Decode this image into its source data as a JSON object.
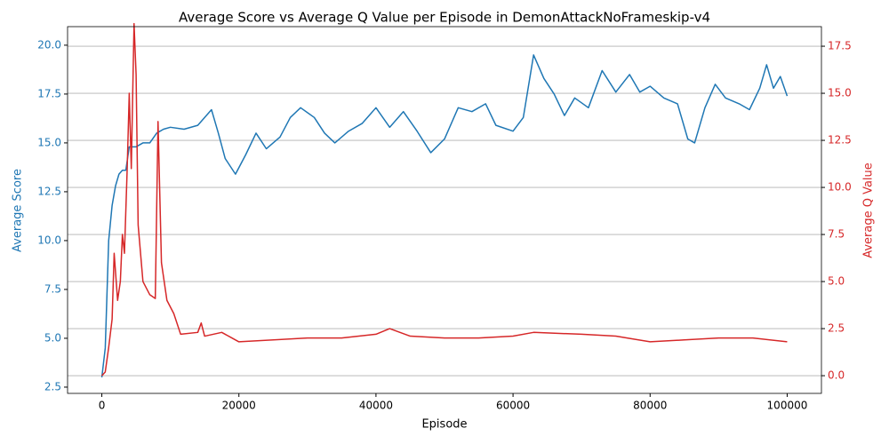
{
  "chart_data": {
    "type": "line",
    "title": "Average Score vs Average Q Value per Episode in DemonAttackNoFrameskip-v4",
    "x_label": "Episode",
    "y_label": "Average Score",
    "y2_label": "Average Q Value",
    "xlim": [
      -5000,
      105000
    ],
    "xticks": [
      0,
      20000,
      40000,
      60000,
      80000,
      100000
    ],
    "ylim": [
      2.18,
      20.95
    ],
    "yticks": [
      2.5,
      {
        "value": 5.0,
        "label": "5.0"
      },
      7.5,
      {
        "value": 10.0,
        "label": "10.0"
      },
      12.5,
      {
        "value": 15.0,
        "label": "15.0"
      },
      17.5,
      {
        "value": 20.0,
        "label": "20.0"
      }
    ],
    "y2lim": [
      -0.94,
      18.54
    ],
    "y2ticks": [
      {
        "value": 0,
        "label": "0.0"
      },
      2.5,
      {
        "value": 5.0,
        "label": "5.0"
      },
      7.5,
      {
        "value": 10.0,
        "label": "10.0"
      },
      12.5,
      {
        "value": 15.0,
        "label": "15.0"
      },
      17.5
    ],
    "grid": "y2",
    "series": [
      {
        "color": "#1f77b4",
        "x": [
          0,
          500,
          1000,
          1500,
          2000,
          2500,
          3000,
          3500,
          4000,
          5000,
          6000,
          7000,
          8000,
          9000,
          10000,
          12000,
          14000,
          16000,
          17000,
          18000,
          19500,
          21000,
          22500,
          24000,
          26000,
          27500,
          29000,
          31000,
          32500,
          34000,
          36000,
          38000,
          40000,
          42000,
          44000,
          46000,
          48000,
          50000,
          52000,
          54000,
          56000,
          57500,
          60000,
          61500,
          63000,
          64500,
          66000,
          67500,
          69000,
          71000,
          73000,
          75000,
          77000,
          78500,
          80000,
          82000,
          84000,
          85500,
          86500,
          88000,
          89500,
          91000,
          93000,
          94500,
          96000,
          97000,
          98000,
          99000,
          100000
        ],
        "values": [
          3.0,
          4.5,
          10.0,
          11.8,
          12.8,
          13.4,
          13.6,
          13.6,
          14.8,
          14.8,
          15.0,
          15.0,
          15.5,
          15.7,
          15.8,
          15.7,
          15.9,
          16.7,
          15.5,
          14.2,
          13.4,
          14.4,
          15.5,
          14.7,
          15.3,
          16.3,
          16.8,
          16.3,
          15.5,
          15.0,
          15.6,
          16.0,
          16.8,
          15.8,
          16.6,
          15.6,
          14.5,
          15.2,
          16.8,
          16.6,
          17.0,
          15.9,
          15.6,
          16.3,
          19.5,
          18.3,
          17.5,
          16.4,
          17.3,
          16.8,
          18.7,
          17.6,
          18.5,
          17.6,
          17.9,
          17.3,
          17.0,
          15.2,
          15.0,
          16.8,
          18.0,
          17.3,
          17.0,
          16.7,
          17.8,
          19.0,
          17.8,
          18.4,
          17.4
        ]
      },
      {
        "color": "#d62728",
        "axis": "y2",
        "x": [
          0,
          500,
          1000,
          1500,
          1800,
          2300,
          2700,
          3000,
          3300,
          3700,
          4000,
          4300,
          4700,
          5000,
          5300,
          6000,
          7000,
          7800,
          8200,
          8700,
          9500,
          10500,
          11500,
          14000,
          14500,
          15000,
          17500,
          19000,
          20000,
          30000,
          35000,
          40000,
          42000,
          45000,
          50000,
          55000,
          60000,
          63000,
          70000,
          75000,
          80000,
          85000,
          90000,
          95000,
          100000
        ],
        "values": [
          0,
          0.2,
          1.5,
          3,
          6.5,
          4,
          5,
          7.5,
          6.5,
          11,
          15,
          11,
          18.7,
          16,
          8,
          5,
          4.3,
          4.1,
          13.5,
          6,
          4,
          3.3,
          2.2,
          2.3,
          2.8,
          2.1,
          2.3,
          2.0,
          1.8,
          2.0,
          2.0,
          2.2,
          2.5,
          2.1,
          2.0,
          2.0,
          2.1,
          2.3,
          2.2,
          2.1,
          1.8,
          1.9,
          2.0,
          2.0,
          1.8
        ]
      }
    ]
  }
}
